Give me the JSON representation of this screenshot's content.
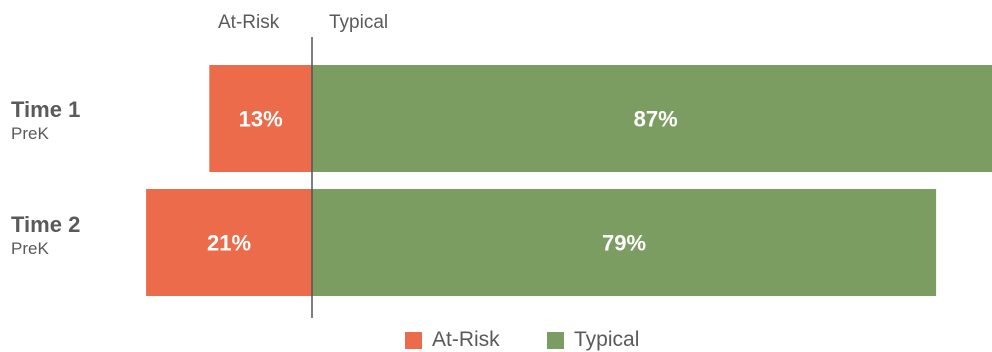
{
  "chart_data": {
    "type": "bar",
    "orientation": "horizontal",
    "stacked": "diverging",
    "categories": [
      {
        "title": "Time 1",
        "subtitle": "PreK"
      },
      {
        "title": "Time 2",
        "subtitle": "PreK"
      }
    ],
    "series": [
      {
        "name": "At-Risk",
        "values": [
          13,
          21
        ],
        "labels": [
          "13%",
          "21%"
        ],
        "color": "#ec6b4a"
      },
      {
        "name": "Typical",
        "values": [
          87,
          79
        ],
        "labels": [
          "87%",
          "79%"
        ],
        "color": "#7c9d61"
      }
    ],
    "column_headers": [
      "At-Risk",
      "Typical"
    ],
    "legend": {
      "position": "bottom",
      "items": [
        "At-Risk",
        "Typical"
      ]
    }
  }
}
